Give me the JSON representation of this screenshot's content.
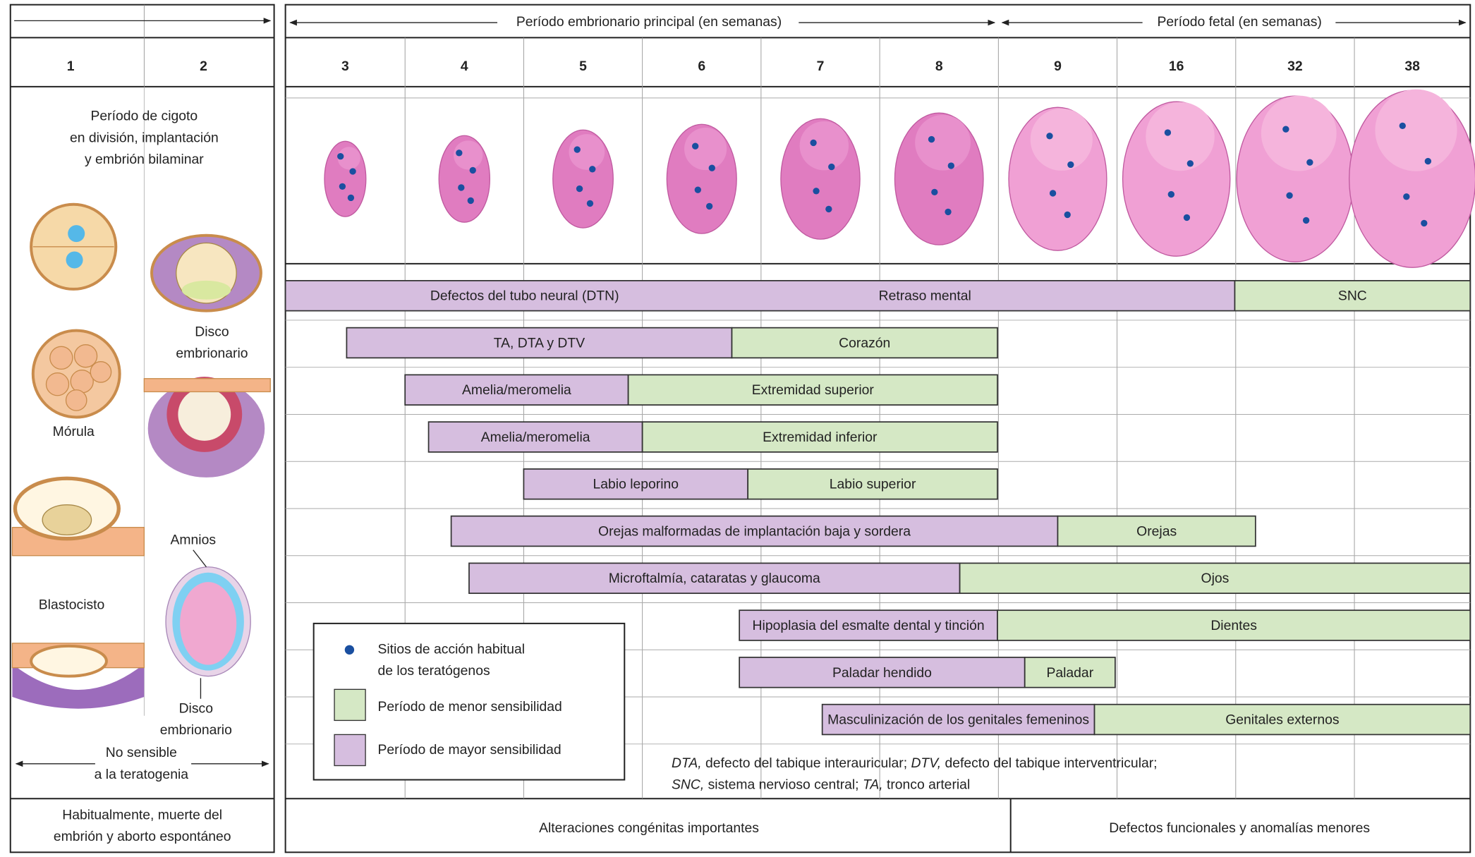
{
  "header": {
    "embryonic_period": "Período embrionario principal (en semanas)",
    "fetal_period": "Período fetal (en semanas)",
    "weeks": [
      1,
      2,
      3,
      4,
      5,
      6,
      7,
      8,
      9,
      16,
      32,
      38
    ]
  },
  "left": {
    "zygote_period": [
      "Período de cigoto",
      "en división, implantación",
      "y embrión bilaminar"
    ],
    "morula": "Mórula",
    "blastocyst": "Blastocisto",
    "embryonic_disc_top": [
      "Disco",
      "embrionario"
    ],
    "amnion": "Amnios",
    "embryonic_disc_bottom": [
      "Disco",
      "embrionario"
    ],
    "not_sensitive": [
      "No sensible",
      "a la teratogenia"
    ],
    "outcome": [
      "Habitualmente, muerte del",
      "embrión y aborto espontáneo"
    ]
  },
  "rows": [
    {
      "segments": [
        {
          "sensitivity": "major",
          "labels": [
            "Defectos del tubo neural (DTN)",
            "Retraso mental"
          ]
        },
        {
          "sensitivity": "minor",
          "labels": [
            "SNC"
          ]
        }
      ]
    },
    {
      "segments": [
        {
          "sensitivity": "major",
          "labels": [
            "TA, DTA y DTV"
          ]
        },
        {
          "sensitivity": "minor",
          "labels": [
            "Corazón"
          ]
        }
      ]
    },
    {
      "segments": [
        {
          "sensitivity": "major",
          "labels": [
            "Amelia/meromelia"
          ]
        },
        {
          "sensitivity": "minor",
          "labels": [
            "Extremidad superior"
          ]
        }
      ]
    },
    {
      "segments": [
        {
          "sensitivity": "major",
          "labels": [
            "Amelia/meromelia"
          ]
        },
        {
          "sensitivity": "minor",
          "labels": [
            "Extremidad inferior"
          ]
        }
      ]
    },
    {
      "segments": [
        {
          "sensitivity": "major",
          "labels": [
            "Labio leporino"
          ]
        },
        {
          "sensitivity": "minor",
          "labels": [
            "Labio superior"
          ]
        }
      ]
    },
    {
      "segments": [
        {
          "sensitivity": "major",
          "labels": [
            "Orejas malformadas de implantación baja y sordera"
          ]
        },
        {
          "sensitivity": "minor",
          "labels": [
            "Orejas"
          ]
        }
      ]
    },
    {
      "segments": [
        {
          "sensitivity": "major",
          "labels": [
            "Microftalmía, cataratas y glaucoma"
          ]
        },
        {
          "sensitivity": "minor",
          "labels": [
            "Ojos"
          ]
        }
      ]
    },
    {
      "segments": [
        {
          "sensitivity": "major",
          "labels": [
            "Hipoplasia del esmalte dental y tinción"
          ]
        },
        {
          "sensitivity": "minor",
          "labels": [
            "Dientes"
          ]
        }
      ]
    },
    {
      "segments": [
        {
          "sensitivity": "major",
          "labels": [
            "Paladar hendido"
          ]
        },
        {
          "sensitivity": "minor",
          "labels": [
            "Paladar"
          ]
        }
      ]
    },
    {
      "segments": [
        {
          "sensitivity": "major",
          "labels": [
            "Masculinización de los genitales femeninos"
          ]
        },
        {
          "sensitivity": "minor",
          "labels": [
            "Genitales externos"
          ]
        }
      ]
    }
  ],
  "legend": {
    "dot": [
      "Sitios de acción habitual",
      "de los teratógenos"
    ],
    "minor": "Período de menor sensibilidad",
    "major": "Período de mayor sensibilidad"
  },
  "footnote": [
    [
      {
        "text": "DTA,",
        "italic": true
      },
      {
        "text": " defecto del tabique interauricular; ",
        "italic": false
      },
      {
        "text": "DTV,",
        "italic": true
      },
      {
        "text": " defecto del tabique interventricular;",
        "italic": false
      }
    ],
    [
      {
        "text": "SNC,",
        "italic": true
      },
      {
        "text": " sistema nervioso central; ",
        "italic": false
      },
      {
        "text": "TA,",
        "italic": true
      },
      {
        "text": " tronco arterial",
        "italic": false
      }
    ]
  ],
  "footer": [
    "Alteraciones congénitas importantes",
    "Defectos funcionales y anomalías menores"
  ]
}
